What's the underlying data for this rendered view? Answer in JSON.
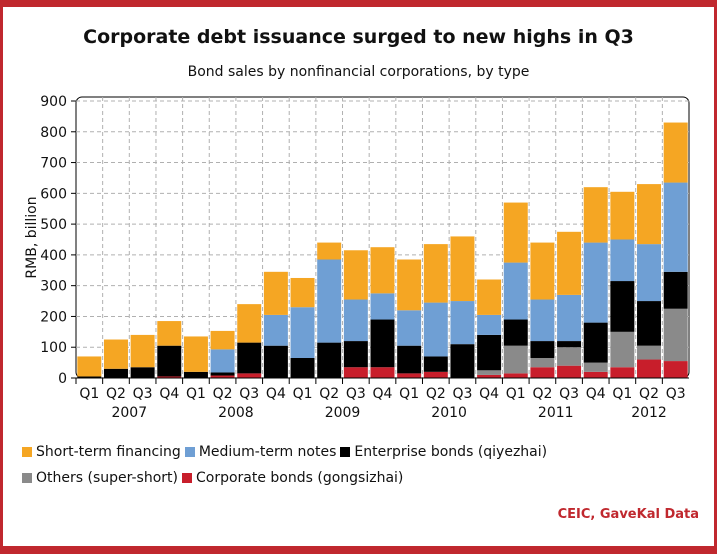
{
  "title": "Corporate debt issuance surged to new highs in Q3",
  "subtitle": "Bond sales by nonfinancial corporations, by type",
  "source": "CEIC, GaveKal Data",
  "colors": {
    "frame": "#c0282e",
    "short_term": "#f5a623",
    "medium_term": "#6f9fd4",
    "enterprise": "#000000",
    "others": "#8a8a8a",
    "corporate": "#c81e2b"
  },
  "chart_data": {
    "type": "bar",
    "stacked": true,
    "ylabel": "RMB, billion",
    "ylim": [
      0,
      900
    ],
    "yticks": [
      0,
      100,
      200,
      300,
      400,
      500,
      600,
      700,
      800,
      900
    ],
    "grid": true,
    "legend_position": "bottom",
    "quarter_labels": [
      "Q1",
      "Q2",
      "Q3",
      "Q4",
      "Q1",
      "Q2",
      "Q3",
      "Q4",
      "Q1",
      "Q2",
      "Q3",
      "Q4",
      "Q1",
      "Q2",
      "Q3",
      "Q4",
      "Q1",
      "Q2",
      "Q3",
      "Q4",
      "Q1",
      "Q2",
      "Q3"
    ],
    "years": [
      "2007",
      "2008",
      "2009",
      "2010",
      "2011",
      "2012"
    ],
    "categories": [
      "2007 Q1",
      "2007 Q2",
      "2007 Q3",
      "2007 Q4",
      "2008 Q1",
      "2008 Q2",
      "2008 Q3",
      "2008 Q4",
      "2009 Q1",
      "2009 Q2",
      "2009 Q3",
      "2009 Q4",
      "2010 Q1",
      "2010 Q2",
      "2010 Q3",
      "2010 Q4",
      "2011 Q1",
      "2011 Q2",
      "2011 Q3",
      "2011 Q4",
      "2012 Q1",
      "2012 Q2",
      "2012 Q3"
    ],
    "series": [
      {
        "name": "Corporate bonds (gongsizhai)",
        "color_key": "corporate",
        "values": [
          0,
          0,
          0,
          5,
          0,
          8,
          15,
          0,
          0,
          0,
          35,
          35,
          15,
          20,
          0,
          10,
          15,
          35,
          40,
          20,
          35,
          60,
          55
        ]
      },
      {
        "name": "Others (super-short)",
        "color_key": "others",
        "values": [
          0,
          0,
          0,
          0,
          0,
          0,
          0,
          0,
          0,
          0,
          0,
          0,
          0,
          0,
          0,
          15,
          90,
          30,
          60,
          30,
          115,
          45,
          170
        ]
      },
      {
        "name": "Enterprise bonds (qiyezhai)",
        "color_key": "enterprise",
        "values": [
          5,
          30,
          35,
          100,
          20,
          10,
          100,
          105,
          65,
          115,
          85,
          155,
          90,
          50,
          110,
          115,
          85,
          55,
          20,
          130,
          165,
          145,
          120
        ]
      },
      {
        "name": "Medium-term notes",
        "color_key": "medium_term",
        "values": [
          0,
          0,
          0,
          0,
          0,
          75,
          0,
          100,
          165,
          270,
          135,
          85,
          115,
          175,
          140,
          65,
          185,
          135,
          150,
          260,
          135,
          185,
          290
        ]
      },
      {
        "name": "Short-term financing",
        "color_key": "short_term",
        "values": [
          65,
          95,
          105,
          80,
          115,
          60,
          125,
          140,
          95,
          55,
          160,
          150,
          165,
          190,
          210,
          115,
          195,
          185,
          205,
          180,
          155,
          195,
          195
        ]
      }
    ]
  },
  "legend_rows": [
    [
      "Short-term financing",
      "Medium-term notes",
      "Enterprise bonds (qiyezhai)"
    ],
    [
      "Others (super-short)",
      "Corporate bonds (gongsizhai)"
    ]
  ]
}
